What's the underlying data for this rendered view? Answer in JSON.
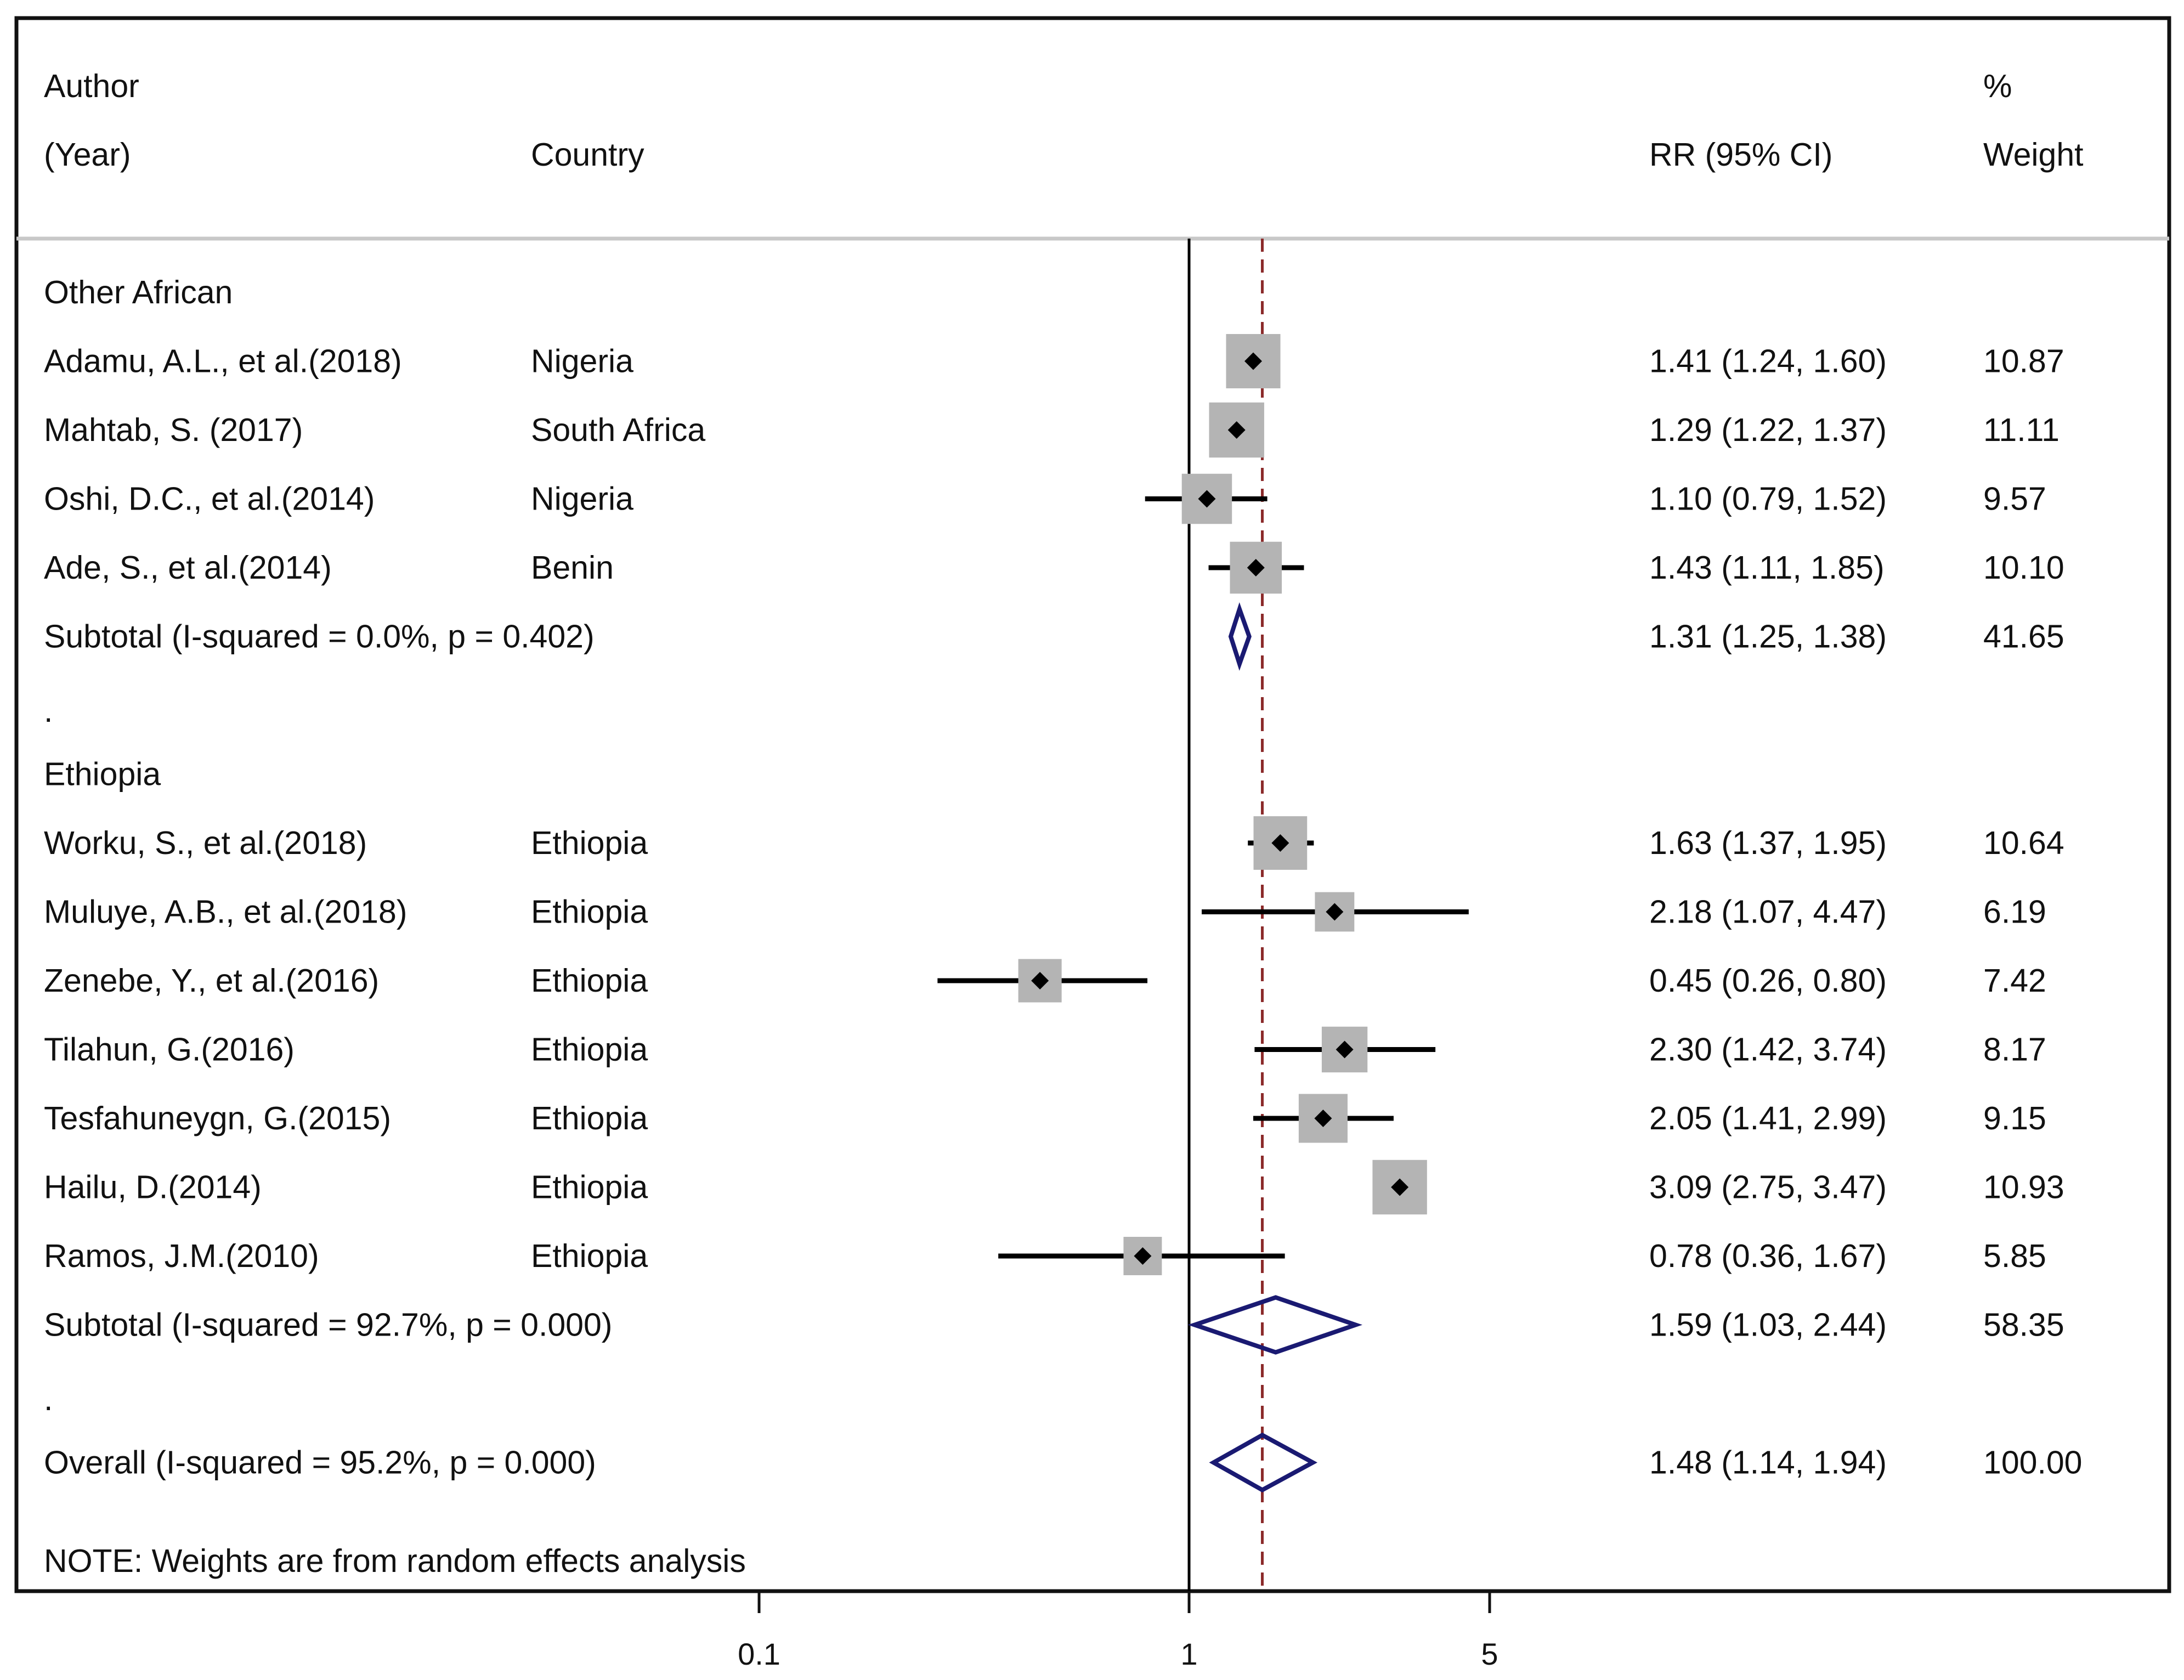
{
  "chart_data": {
    "type": "forest",
    "scale": "log",
    "xlim": [
      0.04,
      10
    ],
    "ticks": [
      {
        "value": 0.1,
        "label": "0.1"
      },
      {
        "value": 1,
        "label": "1"
      },
      {
        "value": 5,
        "label": "5"
      }
    ],
    "null_line": 1,
    "overall_line": 1.48,
    "headers": {
      "author_line1": "Author",
      "author_line2": "(Year)",
      "country": "Country",
      "effect": "RR (95% CI)",
      "weight_line1": "%",
      "weight_line2": "Weight"
    },
    "groups": [
      {
        "name": "Other African",
        "studies": [
          {
            "label": "Adamu, A.L., et al.(2018)",
            "country": "Nigeria",
            "rr": 1.41,
            "lo": 1.24,
            "hi": 1.6,
            "ci_text": "1.41 (1.24, 1.60)",
            "weight": 10.87,
            "weight_text": "10.87"
          },
          {
            "label": "Mahtab, S. (2017)",
            "country": "South Africa",
            "rr": 1.29,
            "lo": 1.22,
            "hi": 1.37,
            "ci_text": "1.29 (1.22, 1.37)",
            "weight": 11.11,
            "weight_text": "11.11"
          },
          {
            "label": "Oshi, D.C., et al.(2014)",
            "country": "Nigeria",
            "rr": 1.1,
            "lo": 0.79,
            "hi": 1.52,
            "ci_text": "1.10 (0.79, 1.52)",
            "weight": 9.57,
            "weight_text": "9.57"
          },
          {
            "label": "Ade, S., et al.(2014)",
            "country": "Benin",
            "rr": 1.43,
            "lo": 1.11,
            "hi": 1.85,
            "ci_text": "1.43 (1.11, 1.85)",
            "weight": 10.1,
            "weight_text": "10.10"
          }
        ],
        "subtotal": {
          "label": "Subtotal  (I-squared = 0.0%, p = 0.402)",
          "rr": 1.31,
          "lo": 1.25,
          "hi": 1.38,
          "ci_text": "1.31 (1.25, 1.38)",
          "weight_text": "41.65"
        },
        "separator": "."
      },
      {
        "name": "Ethiopia",
        "studies": [
          {
            "label": "Worku, S., et al.(2018)",
            "country": "Ethiopia",
            "rr": 1.63,
            "lo": 1.37,
            "hi": 1.95,
            "ci_text": "1.63 (1.37, 1.95)",
            "weight": 10.64,
            "weight_text": "10.64"
          },
          {
            "label": "Muluye, A.B., et al.(2018)",
            "country": "Ethiopia",
            "rr": 2.18,
            "lo": 1.07,
            "hi": 4.47,
            "ci_text": "2.18 (1.07, 4.47)",
            "weight": 6.19,
            "weight_text": "6.19"
          },
          {
            "label": "Zenebe, Y., et al.(2016)",
            "country": "Ethiopia",
            "rr": 0.45,
            "lo": 0.26,
            "hi": 0.8,
            "ci_text": "0.45 (0.26, 0.80)",
            "weight": 7.42,
            "weight_text": "7.42"
          },
          {
            "label": "Tilahun, G.(2016)",
            "country": "Ethiopia",
            "rr": 2.3,
            "lo": 1.42,
            "hi": 3.74,
            "ci_text": "2.30 (1.42, 3.74)",
            "weight": 8.17,
            "weight_text": "8.17"
          },
          {
            "label": "Tesfahuneygn, G.(2015)",
            "country": "Ethiopia",
            "rr": 2.05,
            "lo": 1.41,
            "hi": 2.99,
            "ci_text": "2.05 (1.41, 2.99)",
            "weight": 9.15,
            "weight_text": "9.15"
          },
          {
            "label": "Hailu, D.(2014)",
            "country": "Ethiopia",
            "rr": 3.09,
            "lo": 2.75,
            "hi": 3.47,
            "ci_text": "3.09 (2.75, 3.47)",
            "weight": 10.93,
            "weight_text": "10.93"
          },
          {
            "label": "Ramos, J.M.(2010)",
            "country": "Ethiopia",
            "rr": 0.78,
            "lo": 0.36,
            "hi": 1.67,
            "ci_text": "0.78 (0.36, 1.67)",
            "weight": 5.85,
            "weight_text": "5.85"
          }
        ],
        "subtotal": {
          "label": "Subtotal  (I-squared = 92.7%, p = 0.000)",
          "rr": 1.59,
          "lo": 1.03,
          "hi": 2.44,
          "ci_text": "1.59 (1.03, 2.44)",
          "weight_text": "58.35"
        },
        "separator": "."
      }
    ],
    "overall": {
      "label": "Overall  (I-squared = 95.2%, p = 0.000)",
      "rr": 1.48,
      "lo": 1.14,
      "hi": 1.94,
      "ci_text": "1.48 (1.14, 1.94)",
      "weight_text": "100.00"
    },
    "note": "NOTE: Weights are from random effects analysis",
    "colors": {
      "frame": "#111111",
      "header_rule": "#c8c8c8",
      "ci_line": "#000000",
      "weight_box": "#b4b4b4",
      "point": "#000000",
      "diamond": "#1a1a72",
      "null_line": "#000000",
      "overall_line": "#8b2a2a"
    }
  }
}
